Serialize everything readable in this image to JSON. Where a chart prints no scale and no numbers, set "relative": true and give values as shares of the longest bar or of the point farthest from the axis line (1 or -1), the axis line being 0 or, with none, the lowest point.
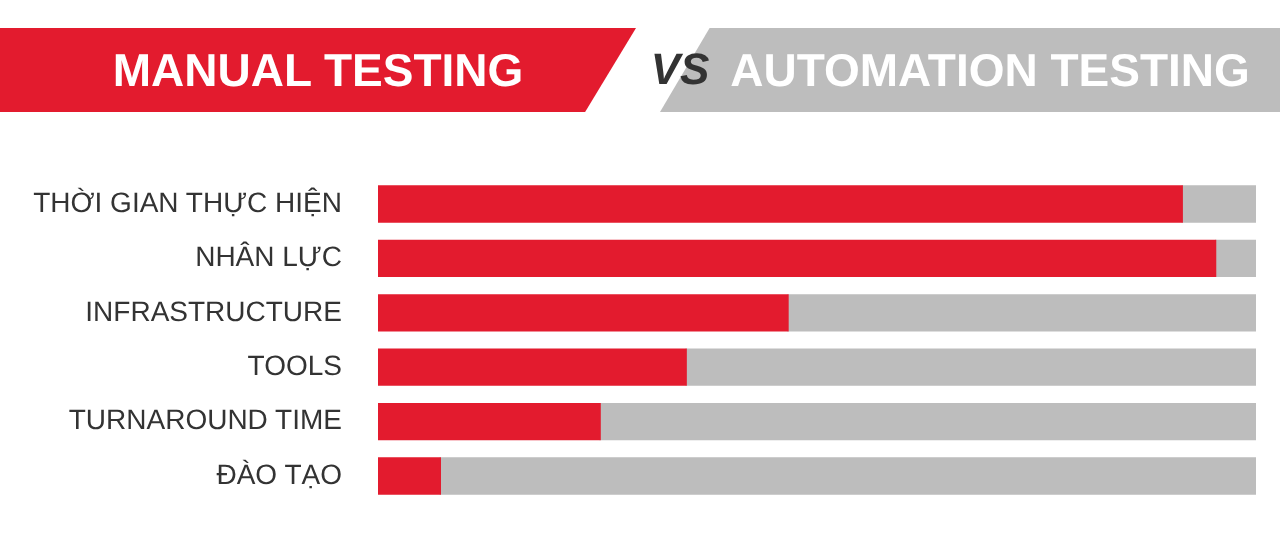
{
  "chart_data": {
    "type": "bar",
    "orientation": "horizontal",
    "stacked": true,
    "relative": true,
    "legend": "top",
    "annotations": [
      "VS"
    ],
    "categories": [
      "THỜI GIAN THỰC HIỆN",
      "NHÂN LỰC",
      "INFRASTRUCTURE",
      "TOOLS",
      "TURNAROUND TIME",
      "ĐÀO TẠO"
    ],
    "series": [
      {
        "name": "MANUAL TESTING",
        "color": "#e31b2e",
        "values": [
          0.916,
          0.954,
          0.467,
          0.351,
          0.253,
          0.071
        ]
      },
      {
        "name": "AUTOMATION TESTING",
        "color": "#bdbdbd",
        "values": [
          0.084,
          0.046,
          0.533,
          0.649,
          0.747,
          0.929
        ]
      }
    ]
  }
}
